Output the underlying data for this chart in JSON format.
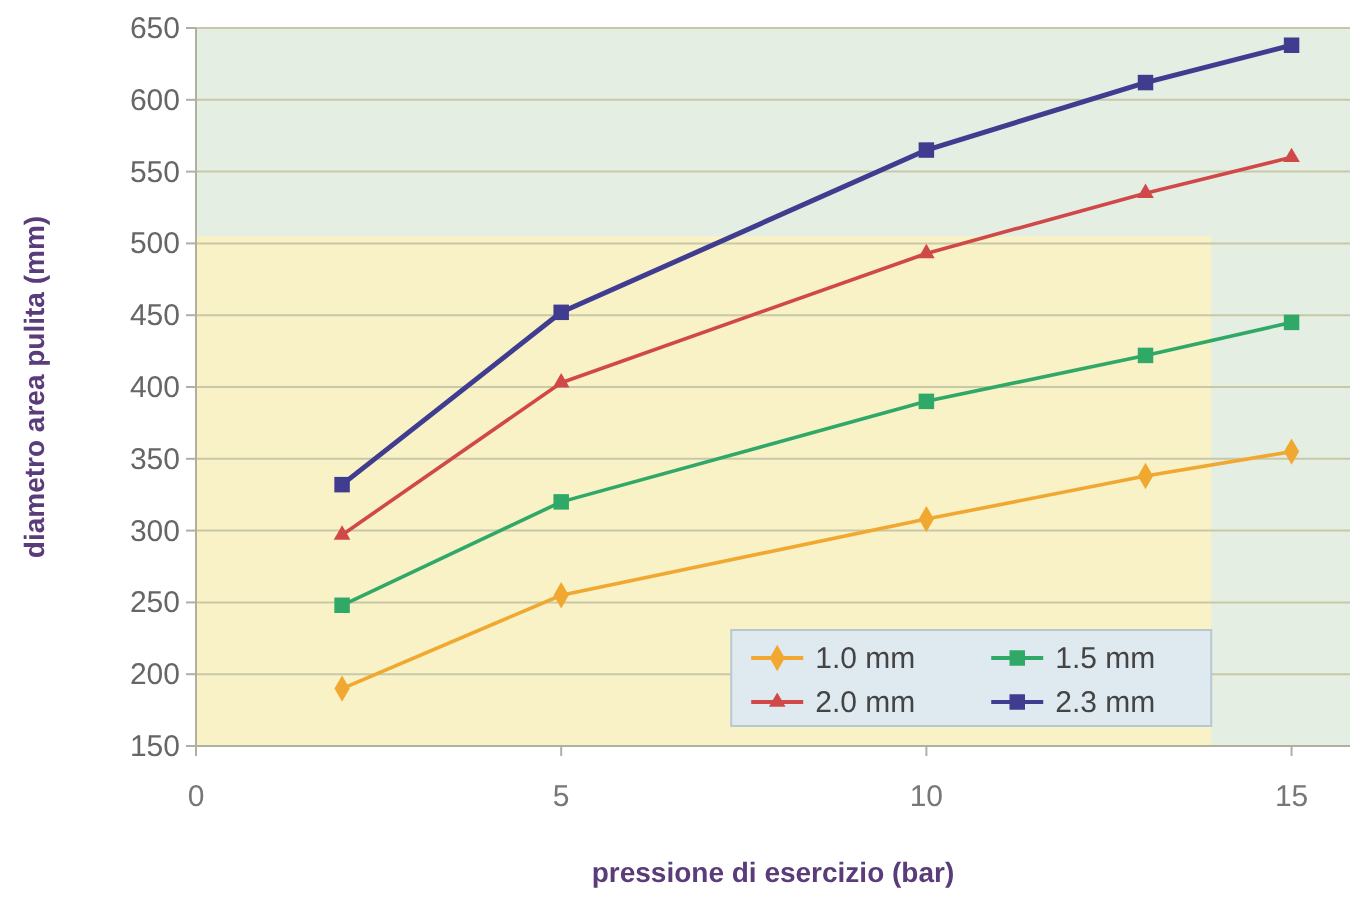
{
  "chart_data": {
    "type": "line",
    "xlabel": "pressione di esercizio (bar)",
    "ylabel": "diametro area pulita (mm)",
    "x": [
      2,
      5,
      10,
      13,
      15
    ],
    "xlim": [
      0,
      15.8
    ],
    "xticks": [
      0,
      5,
      10,
      15
    ],
    "ylim": [
      150,
      650
    ],
    "yticks": [
      150,
      200,
      250,
      300,
      350,
      400,
      450,
      500,
      550,
      600,
      650
    ],
    "grid": "y",
    "bands": [
      {
        "axis": "y",
        "from": 505,
        "to": 650,
        "color": "#e4eee2"
      },
      {
        "axis": "x",
        "from": 13.9,
        "to": 15.8,
        "color": "#e4eee2"
      }
    ],
    "legend": "bottom right",
    "series": [
      {
        "name": "1.0 mm",
        "color": "#f0a830",
        "marker": "diamond",
        "values": [
          190,
          255,
          308,
          338,
          355
        ]
      },
      {
        "name": "1.5 mm",
        "color": "#30a868",
        "marker": "square",
        "values": [
          248,
          320,
          390,
          422,
          445
        ]
      },
      {
        "name": "2.0 mm",
        "color": "#d04848",
        "marker": "triangle",
        "values": [
          297,
          403,
          493,
          535,
          560
        ]
      },
      {
        "name": "2.3 mm",
        "color": "#403c90",
        "marker": "square",
        "values": [
          332,
          452,
          565,
          612,
          638
        ]
      }
    ]
  }
}
